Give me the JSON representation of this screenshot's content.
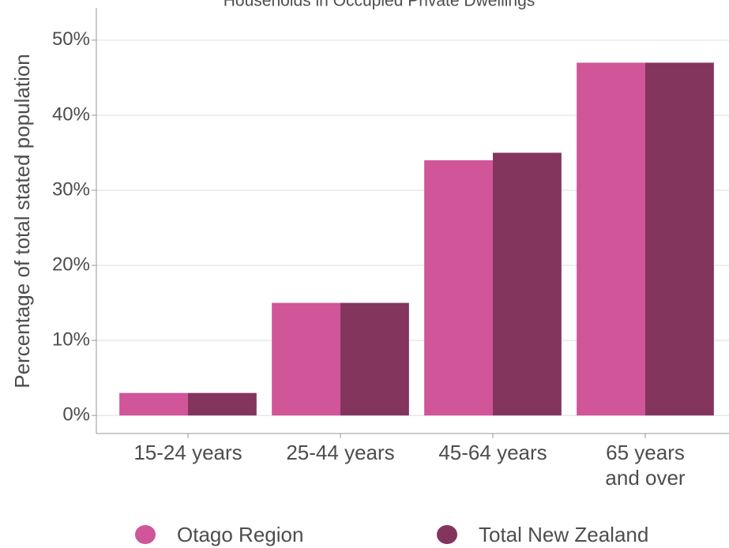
{
  "chart_data": {
    "type": "bar",
    "title": "Households in Occupied Private Dwellings",
    "y_label": "Percentage of total stated population",
    "categories": [
      "15-24 years",
      "25-44 years",
      "45-64 years",
      "65 years\nand over"
    ],
    "series": [
      {
        "name": "Otago Region",
        "color": "#d05599",
        "values": [
          3,
          15,
          34,
          47
        ]
      },
      {
        "name": "Total New Zealand",
        "color": "#83355e",
        "values": [
          3,
          15,
          35,
          47
        ]
      }
    ],
    "ylim": [
      -2.4,
      54.3
    ],
    "yticks": [
      {
        "value": 0,
        "label": "0%"
      },
      {
        "value": 10,
        "label": "10%"
      },
      {
        "value": 20,
        "label": "20%"
      },
      {
        "value": 30,
        "label": "30%"
      },
      {
        "value": 40,
        "label": "40%"
      },
      {
        "value": 50,
        "label": "50%"
      }
    ],
    "grid": true,
    "legend": "bottom"
  }
}
